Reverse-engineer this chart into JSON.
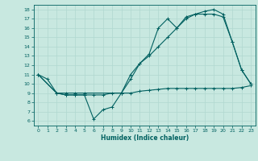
{
  "line1_x": [
    0,
    1,
    2,
    3,
    4,
    5,
    6,
    7,
    8,
    9,
    10,
    11,
    12,
    13,
    14,
    15,
    16,
    17,
    18,
    19,
    20,
    21,
    22,
    23
  ],
  "line1_y": [
    11,
    10.5,
    9.0,
    8.8,
    8.8,
    8.8,
    8.8,
    8.8,
    9.0,
    9.0,
    9.0,
    9.2,
    9.3,
    9.4,
    9.5,
    9.5,
    9.5,
    9.5,
    9.5,
    9.5,
    9.5,
    9.5,
    9.6,
    9.8
  ],
  "line2_x": [
    0,
    2,
    3,
    4,
    5,
    9,
    10,
    11,
    12,
    13,
    14,
    15,
    16,
    17,
    18,
    19,
    20,
    21,
    22,
    23
  ],
  "line2_y": [
    11,
    9.0,
    9.0,
    9.0,
    9.0,
    9.0,
    11.0,
    12.2,
    13.0,
    14.0,
    15.0,
    16.0,
    17.0,
    17.5,
    17.8,
    18.0,
    17.5,
    14.5,
    11.5,
    10.0
  ],
  "line3_x": [
    0,
    2,
    3,
    4,
    5,
    6,
    7,
    8,
    9,
    10,
    11,
    12,
    13,
    14,
    15,
    16,
    17,
    18,
    19,
    20,
    21,
    22,
    23
  ],
  "line3_y": [
    11,
    9.0,
    8.8,
    8.8,
    8.8,
    6.2,
    7.2,
    7.5,
    9.0,
    10.5,
    12.2,
    13.2,
    16.0,
    17.0,
    16.0,
    17.2,
    17.5,
    17.5,
    17.5,
    17.2,
    14.5,
    11.5,
    10.0
  ],
  "line_color": "#006060",
  "bg_color": "#c8e8e0",
  "grid_color": "#b0d8d0",
  "xlim": [
    -0.5,
    23.5
  ],
  "ylim": [
    5.5,
    18.5
  ],
  "yticks": [
    6,
    7,
    8,
    9,
    10,
    11,
    12,
    13,
    14,
    15,
    16,
    17,
    18
  ],
  "xticks": [
    0,
    1,
    2,
    3,
    4,
    5,
    6,
    7,
    8,
    9,
    10,
    11,
    12,
    13,
    14,
    15,
    16,
    17,
    18,
    19,
    20,
    21,
    22,
    23
  ],
  "xlabel": "Humidex (Indice chaleur)"
}
